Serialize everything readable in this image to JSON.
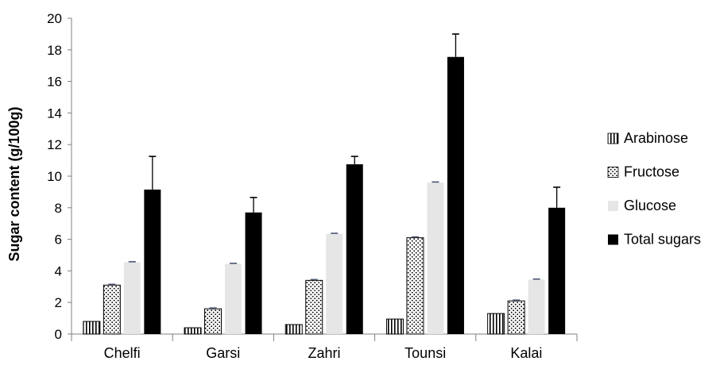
{
  "chart_data": {
    "type": "bar",
    "title": "",
    "xlabel": "",
    "ylabel": "Sugar content (g/100g)",
    "ylim": [
      0,
      20
    ],
    "yticks": [
      0,
      2,
      4,
      6,
      8,
      10,
      12,
      14,
      16,
      18,
      20
    ],
    "categories": [
      "Chelfi",
      "Garsi",
      "Zahri",
      "Tounsi",
      "Kalai"
    ],
    "series": [
      {
        "name": "Arabinose",
        "pattern": "vertical-stripes",
        "values": [
          0.8,
          0.4,
          0.6,
          0.95,
          1.3
        ],
        "errors": [
          0,
          0,
          0,
          0,
          0
        ]
      },
      {
        "name": "Fructose",
        "pattern": "dots",
        "values": [
          3.1,
          1.6,
          3.4,
          6.1,
          2.1
        ],
        "errors": [
          0.05,
          0.05,
          0.05,
          0.05,
          0.05
        ]
      },
      {
        "name": "Glucose",
        "pattern": "light-gray",
        "color": "#e6e6e6",
        "values": [
          4.55,
          4.45,
          6.35,
          9.6,
          3.45
        ],
        "errors": [
          0.03,
          0.03,
          0.03,
          0.03,
          0.03
        ]
      },
      {
        "name": "Total sugars",
        "pattern": "solid",
        "color": "#000000",
        "values": [
          9.15,
          7.7,
          10.75,
          17.55,
          8.0
        ],
        "errors": [
          2.1,
          0.95,
          0.5,
          1.45,
          1.3
        ]
      }
    ],
    "legend_position": "right",
    "grid": false
  }
}
